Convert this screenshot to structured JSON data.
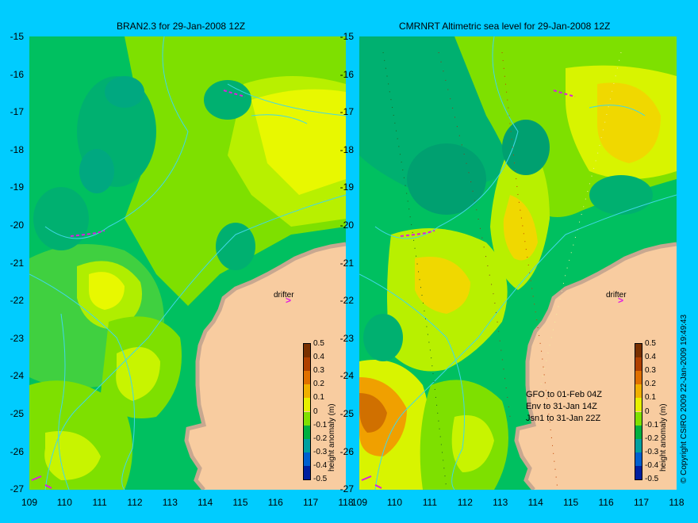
{
  "left_panel": {
    "title": "BRAN2.3  for 29-Jan-2008 12Z",
    "drifter_label": "drifter"
  },
  "right_panel": {
    "title": "CMRNRT Altimetric sea level  for 29-Jan-2008 12Z",
    "drifter_label": "drifter",
    "satellite_notes": [
      "GFO to 01-Feb 04Z",
      "Env to 31-Jan 14Z",
      "Jsn1 to 31-Jan 22Z"
    ]
  },
  "axes": {
    "y_ticks": [
      "-15",
      "-16",
      "-17",
      "-18",
      "-19",
      "-20",
      "-21",
      "-22",
      "-23",
      "-24",
      "-25",
      "-26",
      "-27"
    ],
    "x_ticks": [
      "109",
      "110",
      "111",
      "112",
      "113",
      "114",
      "115",
      "116",
      "117",
      "118"
    ],
    "lon_range": [
      109,
      118
    ],
    "lat_range": [
      -27,
      -15
    ]
  },
  "colorbar": {
    "label": "height anomaly (m)",
    "ticks": [
      "0.5",
      "0.4",
      "0.3",
      "0.2",
      "0.1",
      "0",
      "-0.1",
      "-0.2",
      "-0.3",
      "-0.4",
      "-0.5"
    ],
    "range": [
      -0.5,
      0.5
    ]
  },
  "copyright": "© Copyright CSIRO 2009   22-Jan-2009 19:49:43",
  "colors": {
    "background": "#00ccff",
    "land": "#f8cca0",
    "coast": "#c8a890",
    "contour": "#40d8e8",
    "drifter": "#e01ce0"
  }
}
